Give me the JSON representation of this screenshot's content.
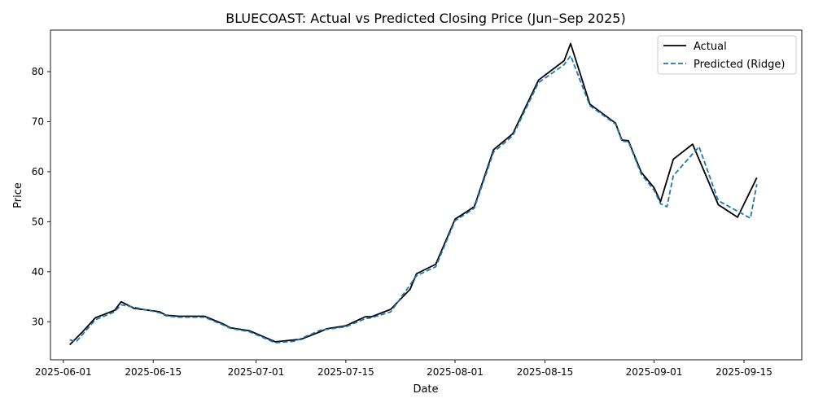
{
  "chart_data": {
    "type": "line",
    "title": "BLUECOAST: Actual vs Predicted Closing Price (Jun–Sep 2025)",
    "xlabel": "Date",
    "ylabel": "Price",
    "x_range": [
      "2025-05-30",
      "2025-09-24"
    ],
    "ylim": [
      22.4,
      88.3
    ],
    "x_ticks": [
      "2025-06-01",
      "2025-06-15",
      "2025-07-01",
      "2025-07-15",
      "2025-08-01",
      "2025-08-15",
      "2025-09-01",
      "2025-09-15"
    ],
    "y_ticks": [
      30,
      40,
      50,
      60,
      70,
      80
    ],
    "grid": false,
    "legend_position": "top-right",
    "series": [
      {
        "name": "Actual",
        "color": "#000000",
        "style": "solid",
        "points": [
          [
            "2025-06-02",
            25.4
          ],
          [
            "2025-06-04",
            28.0
          ],
          [
            "2025-06-06",
            30.8
          ],
          [
            "2025-06-09",
            32.3
          ],
          [
            "2025-06-10",
            34.0
          ],
          [
            "2025-06-12",
            32.7
          ],
          [
            "2025-06-16",
            32.0
          ],
          [
            "2025-06-17",
            31.3
          ],
          [
            "2025-06-19",
            31.1
          ],
          [
            "2025-06-23",
            31.1
          ],
          [
            "2025-06-26",
            29.5
          ],
          [
            "2025-06-27",
            28.8
          ],
          [
            "2025-06-30",
            28.2
          ],
          [
            "2025-07-04",
            26.0
          ],
          [
            "2025-07-08",
            26.5
          ],
          [
            "2025-07-11",
            28.0
          ],
          [
            "2025-07-12",
            28.6
          ],
          [
            "2025-07-15",
            29.2
          ],
          [
            "2025-07-18",
            31.0
          ],
          [
            "2025-07-19",
            31.0
          ],
          [
            "2025-07-22",
            32.5
          ],
          [
            "2025-07-25",
            36.5
          ],
          [
            "2025-07-26",
            39.6
          ],
          [
            "2025-07-29",
            41.5
          ],
          [
            "2025-08-01",
            50.5
          ],
          [
            "2025-08-04",
            53.0
          ],
          [
            "2025-08-07",
            64.4
          ],
          [
            "2025-08-10",
            67.6
          ],
          [
            "2025-08-14",
            78.3
          ],
          [
            "2025-08-18",
            82.2
          ],
          [
            "2025-08-19",
            85.6
          ],
          [
            "2025-08-22",
            73.5
          ],
          [
            "2025-08-26",
            69.7
          ],
          [
            "2025-08-27",
            66.3
          ],
          [
            "2025-08-28",
            66.2
          ],
          [
            "2025-08-30",
            59.9
          ],
          [
            "2025-09-01",
            56.8
          ],
          [
            "2025-09-02",
            54.0
          ],
          [
            "2025-09-04",
            62.5
          ],
          [
            "2025-09-07",
            65.5
          ],
          [
            "2025-09-11",
            53.4
          ],
          [
            "2025-09-14",
            50.9
          ],
          [
            "2025-09-17",
            58.8
          ]
        ]
      },
      {
        "name": "Predicted (Ridge)",
        "color": "#1f77b4",
        "style": "dashed",
        "points": [
          [
            "2025-06-02",
            26.4
          ],
          [
            "2025-06-03",
            26.0
          ],
          [
            "2025-06-06",
            30.4
          ],
          [
            "2025-06-09",
            32.0
          ],
          [
            "2025-06-10",
            33.4
          ],
          [
            "2025-06-12",
            32.9
          ],
          [
            "2025-06-16",
            31.8
          ],
          [
            "2025-06-17",
            31.2
          ],
          [
            "2025-06-19",
            30.9
          ],
          [
            "2025-06-23",
            30.9
          ],
          [
            "2025-06-26",
            29.3
          ],
          [
            "2025-06-27",
            28.7
          ],
          [
            "2025-06-30",
            28.0
          ],
          [
            "2025-07-04",
            25.8
          ],
          [
            "2025-07-07",
            26.1
          ],
          [
            "2025-07-11",
            28.3
          ],
          [
            "2025-07-15",
            29.0
          ],
          [
            "2025-07-18",
            30.6
          ],
          [
            "2025-07-19",
            30.8
          ],
          [
            "2025-07-22",
            32.0
          ],
          [
            "2025-07-26",
            39.2
          ],
          [
            "2025-07-29",
            41.0
          ],
          [
            "2025-08-01",
            50.2
          ],
          [
            "2025-08-04",
            52.7
          ],
          [
            "2025-08-07",
            63.9
          ],
          [
            "2025-08-10",
            67.2
          ],
          [
            "2025-08-14",
            77.8
          ],
          [
            "2025-08-18",
            81.4
          ],
          [
            "2025-08-19",
            83.2
          ],
          [
            "2025-08-22",
            73.2
          ],
          [
            "2025-08-26",
            69.5
          ],
          [
            "2025-08-27",
            66.1
          ],
          [
            "2025-08-28",
            66.0
          ],
          [
            "2025-08-30",
            59.5
          ],
          [
            "2025-09-01",
            56.3
          ],
          [
            "2025-09-02",
            53.6
          ],
          [
            "2025-09-03",
            53.0
          ],
          [
            "2025-09-04",
            59.2
          ],
          [
            "2025-09-08",
            65.0
          ],
          [
            "2025-09-11",
            54.2
          ],
          [
            "2025-09-16",
            50.7
          ],
          [
            "2025-09-17",
            57.5
          ]
        ]
      }
    ]
  }
}
